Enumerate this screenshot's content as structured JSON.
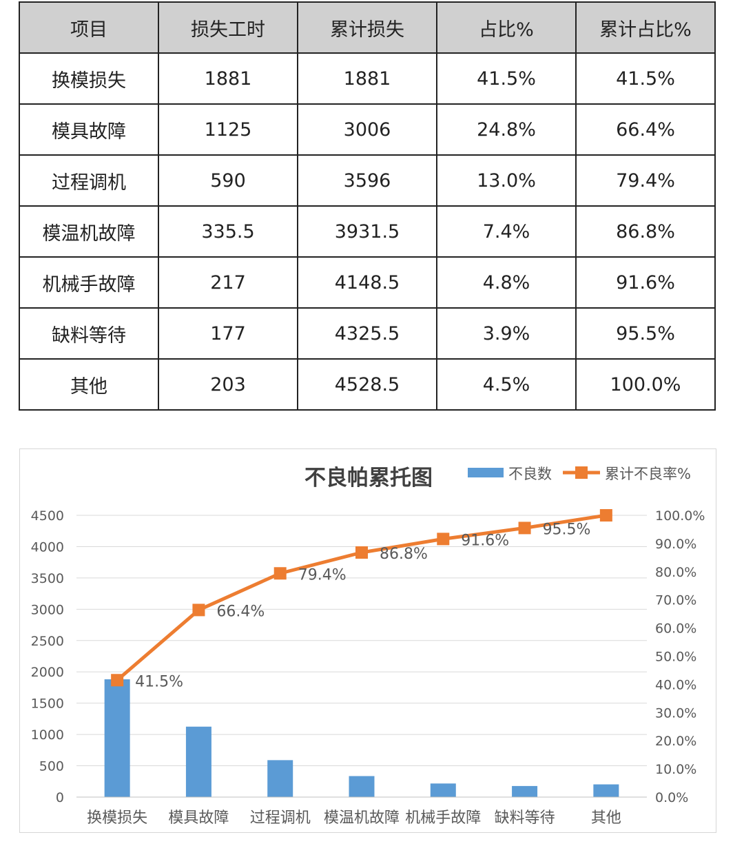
{
  "table": {
    "headers": [
      "项目",
      "损失工时",
      "累计损失",
      "占比%",
      "累计占比%"
    ],
    "rows": [
      [
        "换模损失",
        "1881",
        "1881",
        "41.5%",
        "41.5%"
      ],
      [
        "模具故障",
        "1125",
        "3006",
        "24.8%",
        "66.4%"
      ],
      [
        "过程调机",
        "590",
        "3596",
        "13.0%",
        "79.4%"
      ],
      [
        "模温机故障",
        "335.5",
        "3931.5",
        "7.4%",
        "86.8%"
      ],
      [
        "机械手故障",
        "217",
        "4148.5",
        "4.8%",
        "91.6%"
      ],
      [
        "缺料等待",
        "177",
        "4325.5",
        "3.9%",
        "95.5%"
      ],
      [
        "其他",
        "203",
        "4528.5",
        "4.5%",
        "100.0%"
      ]
    ]
  },
  "chart_data": {
    "type": "bar",
    "title": "不良帕累托图",
    "categories": [
      "换模损失",
      "模具故障",
      "过程调机",
      "模温机故障",
      "机械手故障",
      "缺料等待",
      "其他"
    ],
    "series": [
      {
        "name": "不良数",
        "type": "bar",
        "axis": "left",
        "values": [
          1881,
          1125,
          590,
          335.5,
          217,
          177,
          203
        ]
      },
      {
        "name": "累计不良率%",
        "type": "line",
        "axis": "right",
        "values": [
          41.5,
          66.4,
          79.4,
          86.8,
          91.6,
          95.5,
          100.0
        ],
        "data_labels": [
          "41.5%",
          "66.4%",
          "79.4%",
          "86.8%",
          "91.6%",
          "95.5%",
          ""
        ]
      }
    ],
    "y_left": {
      "ylim": [
        0,
        4500
      ],
      "ticks": [
        "0",
        "500",
        "1000",
        "1500",
        "2000",
        "2500",
        "3000",
        "3500",
        "4000",
        "4500"
      ]
    },
    "y_right": {
      "ylim": [
        0,
        100
      ],
      "ticks": [
        "0.0%",
        "10.0%",
        "20.0%",
        "30.0%",
        "40.0%",
        "50.0%",
        "60.0%",
        "70.0%",
        "80.0%",
        "90.0%",
        "100.0%"
      ]
    },
    "grid": true,
    "legend": "top-right",
    "colors": {
      "bar": "#5b9bd5",
      "line": "#ed7d31",
      "grid": "#d9d9d9",
      "text": "#595959",
      "title": "#404040"
    }
  }
}
